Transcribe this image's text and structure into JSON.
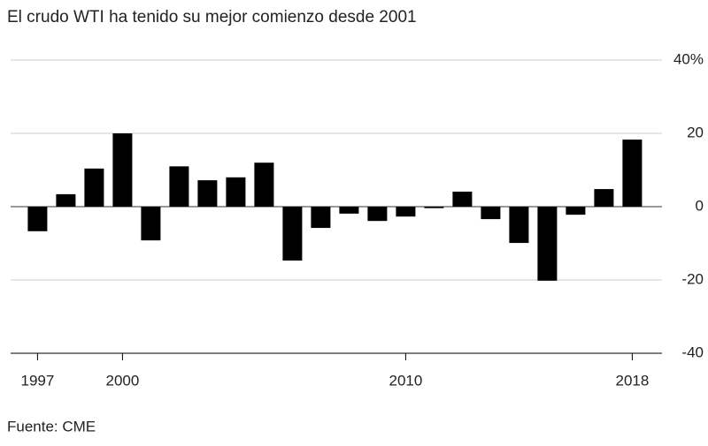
{
  "chart_data": {
    "type": "bar",
    "title": "El crudo WTI ha tenido su mejor comienzo desde 2001",
    "source": "Fuente: CME",
    "x": [
      1997,
      1998,
      1999,
      2000,
      2001,
      2002,
      2003,
      2004,
      2005,
      2006,
      2007,
      2008,
      2009,
      2010,
      2011,
      2012,
      2013,
      2014,
      2015,
      2016,
      2017,
      2018
    ],
    "values": [
      -6.7,
      3.4,
      10.4,
      20,
      -9.2,
      11,
      7.2,
      8,
      12,
      -14.7,
      -5.8,
      -1.9,
      -3.9,
      -2.7,
      -0.4,
      4.1,
      -3.4,
      -9.9,
      -20.2,
      -2.2,
      4.8,
      18.3
    ],
    "color": "#000000",
    "xlim": [
      1996.05,
      2019.05
    ],
    "xticks": [
      1997,
      2000,
      2010,
      2018
    ],
    "ylim": [
      -40,
      40
    ],
    "yticks": [
      {
        "value": 40,
        "label": "40%"
      },
      20,
      0,
      -20,
      -40
    ],
    "grid": true
  }
}
